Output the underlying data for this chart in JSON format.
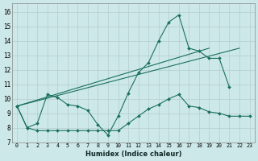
{
  "xlabel": "Humidex (Indice chaleur)",
  "bg_color": "#cde8e8",
  "grid_color": "#b4cccc",
  "line_color": "#1a7060",
  "xlim": [
    -0.5,
    23.5
  ],
  "ylim": [
    7.0,
    16.6
  ],
  "yticks": [
    7,
    8,
    9,
    10,
    11,
    12,
    13,
    14,
    15,
    16
  ],
  "xticks": [
    0,
    1,
    2,
    3,
    4,
    5,
    6,
    7,
    8,
    9,
    10,
    11,
    12,
    13,
    14,
    15,
    16,
    17,
    18,
    19,
    20,
    21,
    22,
    23
  ],
  "line1_x": [
    0,
    1,
    2,
    3,
    4,
    5,
    6,
    7,
    8,
    9,
    10,
    11,
    12,
    13,
    14,
    15,
    16,
    17,
    18,
    19,
    20,
    21
  ],
  "line1_y": [
    9.5,
    8.0,
    8.3,
    10.3,
    10.1,
    9.6,
    9.5,
    9.2,
    8.2,
    7.5,
    8.8,
    10.4,
    11.8,
    12.5,
    14.0,
    15.3,
    15.8,
    13.5,
    13.3,
    12.8,
    12.8,
    10.8
  ],
  "line2_x": [
    0,
    1,
    2,
    3,
    4,
    5,
    6,
    7,
    8,
    9,
    10,
    11,
    12,
    13,
    14,
    15,
    16,
    17,
    18,
    19,
    20,
    21,
    22,
    23
  ],
  "line2_y": [
    9.5,
    8.0,
    7.8,
    7.8,
    7.8,
    7.8,
    7.8,
    7.8,
    7.8,
    7.8,
    7.8,
    8.3,
    8.8,
    9.3,
    9.6,
    10.0,
    10.3,
    9.5,
    9.4,
    9.1,
    9.0,
    8.8,
    8.8,
    8.8
  ],
  "trend1_x": [
    0,
    19
  ],
  "trend1_y": [
    9.5,
    13.5
  ],
  "trend2_x": [
    0,
    22
  ],
  "trend2_y": [
    9.5,
    13.5
  ]
}
